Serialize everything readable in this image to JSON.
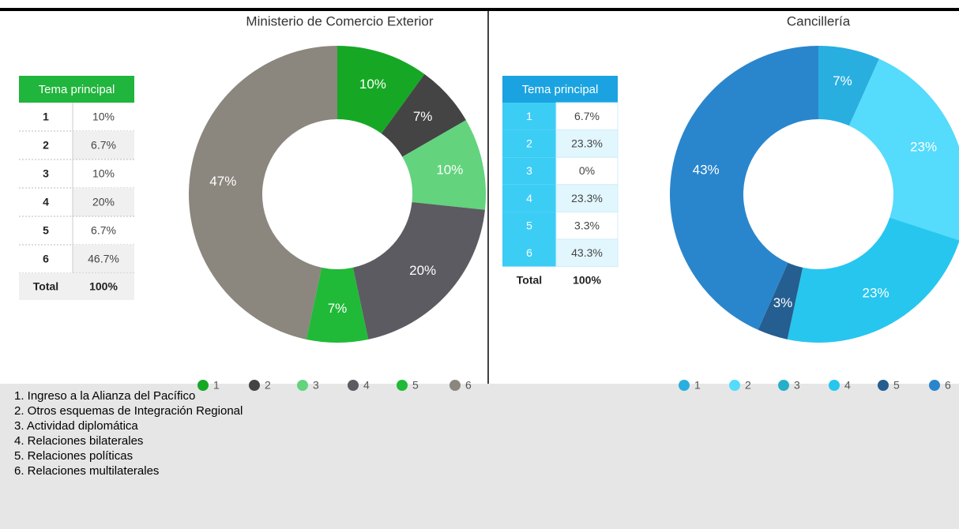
{
  "chart_data": [
    {
      "type": "donut",
      "title": "Ministerio de Comercio Exterior",
      "categories": [
        "1",
        "2",
        "3",
        "4",
        "5",
        "6"
      ],
      "values": [
        10,
        6.7,
        10,
        20,
        6.7,
        46.7
      ],
      "value_labels": [
        "10%",
        "7%",
        "10%",
        "20%",
        "7%",
        "47%"
      ],
      "colors": [
        "#16a825",
        "#444444",
        "#63d37e",
        "#5c5b61",
        "#20ba38",
        "#8b867e"
      ]
    },
    {
      "type": "donut",
      "title": "Cancillería",
      "categories": [
        "1",
        "2",
        "3",
        "4",
        "5",
        "6"
      ],
      "values": [
        6.7,
        23.3,
        0,
        23.3,
        3.3,
        43.3
      ],
      "value_labels": [
        "7%",
        "23%",
        null,
        "23%",
        "3%",
        "43%"
      ],
      "colors": [
        "#29aee0",
        "#55dbfb",
        "#27afc9",
        "#27c6ef",
        "#255e90",
        "#2a86cc"
      ]
    }
  ],
  "tables": [
    {
      "header": "Tema principal",
      "header_color": "#20b53c",
      "rows": [
        [
          "1",
          "10%"
        ],
        [
          "2",
          "6.7%"
        ],
        [
          "3",
          "10%"
        ],
        [
          "4",
          "20%"
        ],
        [
          "5",
          "6.7%"
        ],
        [
          "6",
          "46.7%"
        ]
      ],
      "total": [
        "Total",
        "100%"
      ]
    },
    {
      "header": "Tema principal",
      "header_color": "#1aa3e0",
      "rows": [
        [
          "1",
          "6.7%"
        ],
        [
          "2",
          "23.3%"
        ],
        [
          "3",
          "0%"
        ],
        [
          "4",
          "23.3%"
        ],
        [
          "5",
          "3.3%"
        ],
        [
          "6",
          "43.3%"
        ]
      ],
      "total": [
        "Total",
        "100%"
      ]
    }
  ],
  "notes": [
    "1. Ingreso a la Alianza del Pacífico",
    "2. Otros esquemas de Integración Regional",
    "3. Actividad diplomática",
    "4. Relaciones bilaterales",
    "5. Relaciones políticas",
    "6. Relaciones multilaterales"
  ]
}
